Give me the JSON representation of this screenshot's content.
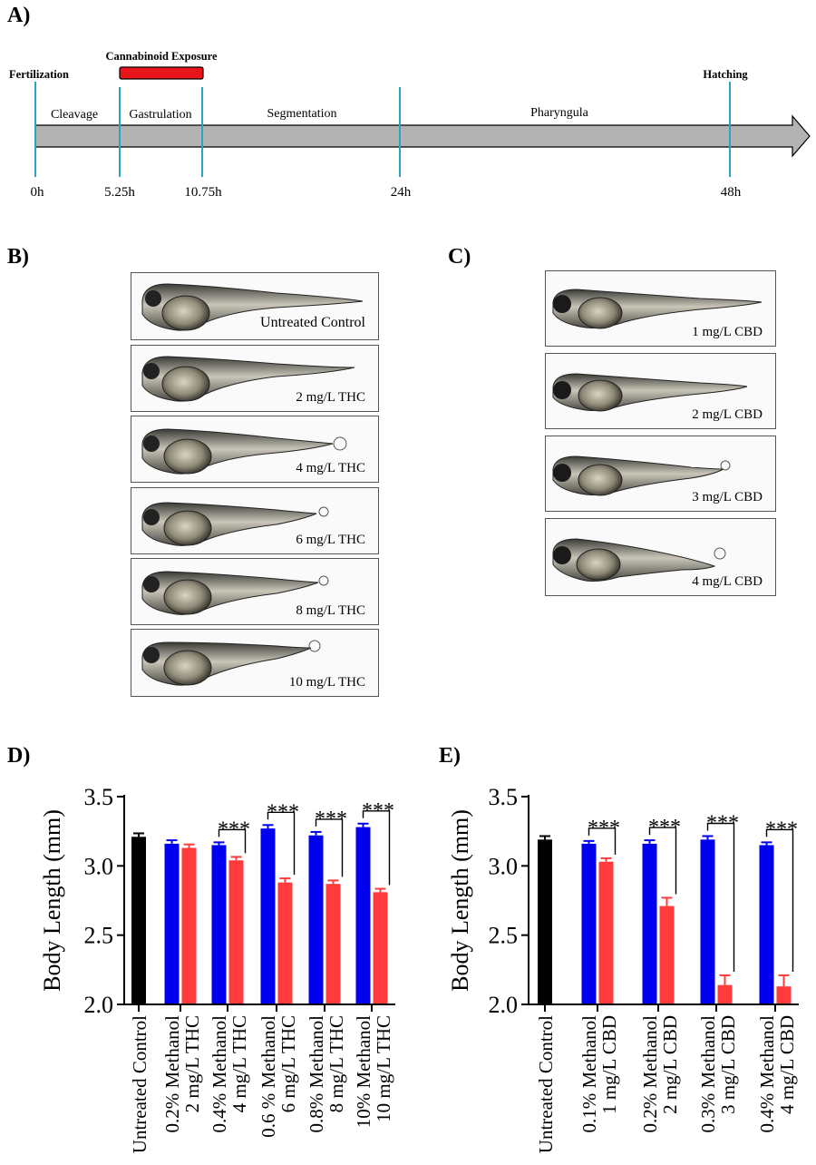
{
  "panel_a": {
    "label": "A)",
    "exposure_label": "Cannabinoid Exposure",
    "milestones": [
      {
        "label": "Fertilization",
        "time": "0h"
      },
      {
        "label": "",
        "time": "5.25h"
      },
      {
        "label": "",
        "time": "10.75h"
      },
      {
        "label": "",
        "time": "24h"
      },
      {
        "label": "Hatching",
        "time": "48h"
      }
    ],
    "stages": [
      "Cleavage",
      "Gastrulation",
      "Segmentation",
      "Pharyngula"
    ],
    "colors": {
      "arrow": "#b3b3b3",
      "ticks": "#2ba3c4",
      "exposure": "#e8151b"
    }
  },
  "panel_b": {
    "label": "B)",
    "images": [
      "Untreated Control",
      "2 mg/L THC",
      "4 mg/L THC",
      "6 mg/L THC",
      "8 mg/L THC",
      "10 mg/L THC"
    ]
  },
  "panel_c": {
    "label": "C)",
    "images": [
      "1 mg/L CBD",
      "2 mg/L CBD",
      "3 mg/L CBD",
      "4 mg/L CBD"
    ]
  },
  "chart_data": [
    {
      "panel": "D)",
      "type": "bar",
      "ylabel": "Body Length (mm)",
      "ylim": [
        2.0,
        3.5
      ],
      "yticks": [
        "2.0",
        "2.5",
        "3.0",
        "3.5"
      ],
      "significance": "***",
      "bars": [
        {
          "group": 0,
          "color": "#000000",
          "value": 3.21,
          "error": 0.025
        },
        {
          "group": 1,
          "color": "#0000ee",
          "value": 3.16,
          "error": 0.025
        },
        {
          "group": 1,
          "color": "#ff3b3b",
          "value": 3.13,
          "error": 0.025
        },
        {
          "group": 2,
          "color": "#0000ee",
          "value": 3.15,
          "error": 0.02
        },
        {
          "group": 2,
          "color": "#ff3b3b",
          "value": 3.04,
          "error": 0.025
        },
        {
          "group": 3,
          "color": "#0000ee",
          "value": 3.27,
          "error": 0.025
        },
        {
          "group": 3,
          "color": "#ff3b3b",
          "value": 2.88,
          "error": 0.03
        },
        {
          "group": 4,
          "color": "#0000ee",
          "value": 3.22,
          "error": 0.025
        },
        {
          "group": 4,
          "color": "#ff3b3b",
          "value": 2.87,
          "error": 0.025
        },
        {
          "group": 5,
          "color": "#0000ee",
          "value": 3.28,
          "error": 0.025
        },
        {
          "group": 5,
          "color": "#ff3b3b",
          "value": 2.81,
          "error": 0.025
        }
      ],
      "categories": [
        [
          "Untreated Control"
        ],
        [
          "0.2% Methanol",
          "2 mg/L THC"
        ],
        [
          "0.4% Methanol",
          "4 mg/L THC"
        ],
        [
          "0.6 % Methanol",
          "6 mg/L THC"
        ],
        [
          "0.8% Methanol",
          "8 mg/L THC"
        ],
        [
          "10% Methanol",
          "10 mg/L THC"
        ]
      ],
      "significant_groups": [
        2,
        3,
        4,
        5
      ]
    },
    {
      "panel": "E)",
      "type": "bar",
      "ylabel": "Body Length (mm)",
      "ylim": [
        2.0,
        3.5
      ],
      "yticks": [
        "2.0",
        "2.5",
        "3.0",
        "3.5"
      ],
      "significance": "***",
      "bars": [
        {
          "group": 0,
          "color": "#000000",
          "value": 3.19,
          "error": 0.025
        },
        {
          "group": 1,
          "color": "#0000ee",
          "value": 3.16,
          "error": 0.02
        },
        {
          "group": 1,
          "color": "#ff3b3b",
          "value": 3.03,
          "error": 0.025
        },
        {
          "group": 2,
          "color": "#0000ee",
          "value": 3.16,
          "error": 0.025
        },
        {
          "group": 2,
          "color": "#ff3b3b",
          "value": 2.71,
          "error": 0.06
        },
        {
          "group": 3,
          "color": "#0000ee",
          "value": 3.19,
          "error": 0.025
        },
        {
          "group": 3,
          "color": "#ff3b3b",
          "value": 2.14,
          "error": 0.07
        },
        {
          "group": 4,
          "color": "#0000ee",
          "value": 3.15,
          "error": 0.02
        },
        {
          "group": 4,
          "color": "#ff3b3b",
          "value": 2.13,
          "error": 0.08
        }
      ],
      "categories": [
        [
          "Untreated Control"
        ],
        [
          "0.1% Methanol",
          "1 mg/L CBD"
        ],
        [
          "0.2% Methanol",
          "2 mg/L CBD"
        ],
        [
          "0.3% Methanol",
          "3 mg/L CBD"
        ],
        [
          "0.4% Methanol",
          "4 mg/L CBD"
        ]
      ],
      "significant_groups": [
        1,
        2,
        3,
        4
      ]
    }
  ]
}
